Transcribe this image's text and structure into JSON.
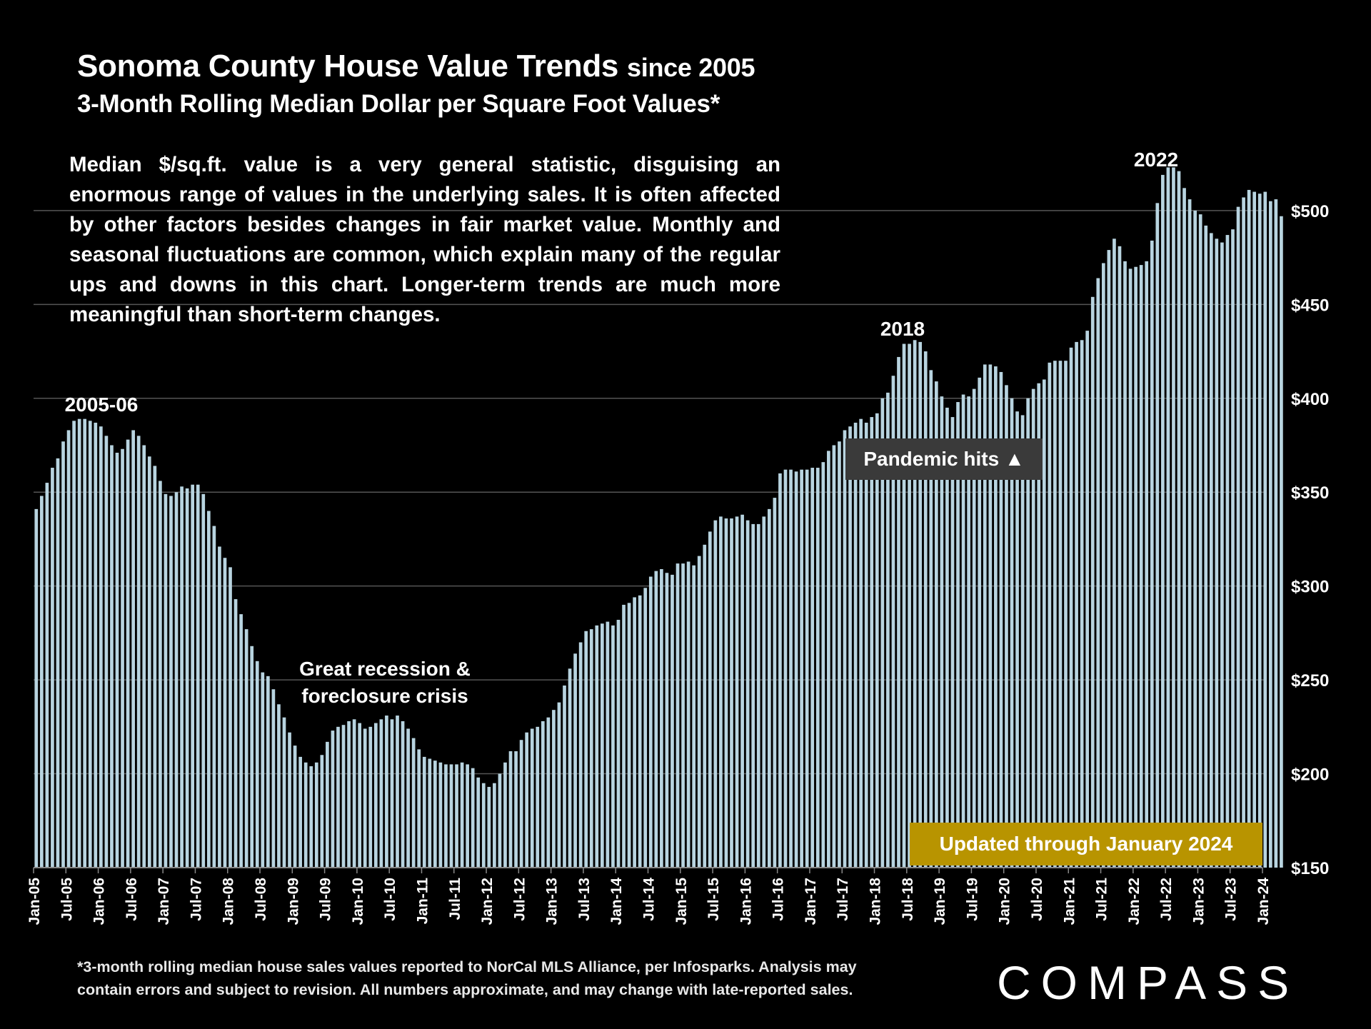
{
  "chart_data": {
    "type": "bar",
    "title": "Sonoma County House Value Trends",
    "title_suffix": "since 2005",
    "subtitle": "3-Month Rolling Median Dollar per Square Foot Values*",
    "start_month": "Jan-05",
    "end_month": "Jan-24",
    "ylim": [
      150,
      530
    ],
    "y_ticks": [
      150,
      200,
      250,
      300,
      350,
      400,
      450,
      500
    ],
    "y_tick_labels": [
      "$150",
      "$200",
      "$250",
      "$300",
      "$350",
      "$400",
      "$450",
      "$500"
    ],
    "x_tick_labels": [
      "Jan-05",
      "Jul-05",
      "Jan-06",
      "Jul-06",
      "Jan-07",
      "Jul-07",
      "Jan-08",
      "Jul-08",
      "Jan-09",
      "Jul-09",
      "Jan-10",
      "Jul-10",
      "Jan-11",
      "Jul-11",
      "Jan-12",
      "Jul-12",
      "Jan-13",
      "Jul-13",
      "Jan-14",
      "Jul-14",
      "Jan-15",
      "Jul-15",
      "Jan-16",
      "Jul-16",
      "Jan-17",
      "Jul-17",
      "Jan-18",
      "Jul-18",
      "Jan-19",
      "Jul-19",
      "Jan-20",
      "Jul-20",
      "Jan-21",
      "Jul-21",
      "Jan-22",
      "Jul-22",
      "Jan-23",
      "Jul-23",
      "Jan-24"
    ],
    "grid": true,
    "bar_color": "#b8d4e0",
    "values": [
      341,
      348,
      355,
      363,
      368,
      377,
      383,
      388,
      389,
      389,
      388,
      387,
      385,
      380,
      375,
      371,
      373,
      378,
      383,
      380,
      375,
      369,
      364,
      356,
      349,
      348,
      350,
      353,
      352,
      354,
      354,
      349,
      340,
      332,
      321,
      315,
      310,
      293,
      285,
      277,
      268,
      260,
      254,
      252,
      245,
      237,
      230,
      222,
      215,
      209,
      206,
      204,
      206,
      210,
      217,
      223,
      225,
      226,
      228,
      229,
      227,
      224,
      225,
      227,
      229,
      231,
      229,
      231,
      228,
      224,
      219,
      213,
      209,
      208,
      207,
      206,
      205,
      205,
      205,
      206,
      205,
      203,
      198,
      195,
      193,
      195,
      200,
      206,
      212,
      212,
      218,
      222,
      224,
      225,
      228,
      230,
      234,
      238,
      247,
      256,
      264,
      270,
      276,
      277,
      279,
      280,
      281,
      279,
      282,
      290,
      291,
      294,
      295,
      299,
      305,
      308,
      309,
      307,
      306,
      312,
      312,
      313,
      311,
      316,
      322,
      329,
      335,
      337,
      336,
      336,
      337,
      338,
      335,
      333,
      333,
      337,
      341,
      347,
      360,
      362,
      362,
      361,
      362,
      362,
      363,
      363,
      366,
      372,
      375,
      377,
      383,
      385,
      387,
      389,
      387,
      390,
      392,
      400,
      403,
      412,
      422,
      429,
      429,
      431,
      430,
      425,
      415,
      409,
      401,
      395,
      390,
      398,
      402,
      401,
      405,
      411,
      418,
      418,
      417,
      414,
      407,
      400,
      393,
      391,
      400,
      405,
      408,
      410,
      419,
      420,
      420,
      420,
      427,
      430,
      431,
      436,
      454,
      464,
      472,
      479,
      485,
      481,
      473,
      469,
      470,
      471,
      473,
      484,
      504,
      519,
      523,
      523,
      521,
      512,
      506,
      500,
      498,
      492,
      488,
      485,
      483,
      487,
      490,
      502,
      507,
      511,
      510,
      509,
      510,
      505,
      506,
      497
    ]
  },
  "annotations": {
    "period_2005": "2005-06",
    "period_2018": "2018",
    "period_2022": "2022",
    "recession_line1": "Great recession &",
    "recession_line2": "foreclosure crisis",
    "pandemic": "Pandemic hits ▲",
    "updated": "Updated through January 2024"
  },
  "note": "Median $/sq.ft. value is a very general statistic, disguising an enormous range of values in the underlying sales. It is often affected by other factors besides changes in fair market value. Monthly and seasonal fluctuations are common, which explain many of the regular ups and downs in this chart. Longer-term trends are much more meaningful than short-term changes.",
  "footnote_line1": "*3-month rolling median house sales values reported to NorCal MLS Alliance, per Infosparks. Analysis may",
  "footnote_line2": "contain errors and subject to revision. All numbers approximate, and may change with late-reported sales.",
  "logo": "COMPASS"
}
